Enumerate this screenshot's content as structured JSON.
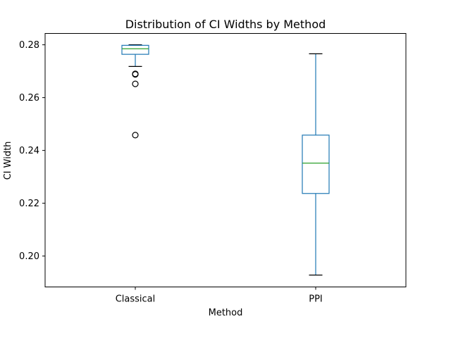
{
  "chart_data": {
    "type": "box",
    "title": "Distribution of CI Widths by Method",
    "xlabel": "Method",
    "ylabel": "CI Width",
    "ylim": [
      0.1883,
      0.2843
    ],
    "yticks": [
      0.2,
      0.22,
      0.24,
      0.26,
      0.28
    ],
    "ytick_labels": [
      "0.20",
      "0.22",
      "0.24",
      "0.26",
      "0.28"
    ],
    "categories": [
      "Classical",
      "PPI"
    ],
    "boxes": [
      {
        "name": "Classical",
        "whisker_low": 0.2718,
        "q1": 0.2764,
        "median": 0.2785,
        "q3": 0.2798,
        "whisker_high": 0.28,
        "outliers": [
          0.269,
          0.2688,
          0.2652,
          0.2458
        ]
      },
      {
        "name": "PPI",
        "whisker_low": 0.1928,
        "q1": 0.2237,
        "median": 0.2352,
        "q3": 0.2458,
        "whisker_high": 0.2766,
        "outliers": []
      }
    ],
    "grid": false,
    "legend": "none",
    "colors": {
      "box": "#1f77b4",
      "median": "#2ca02c",
      "whisker_cap": "#000000",
      "outlier": "#000000"
    }
  }
}
